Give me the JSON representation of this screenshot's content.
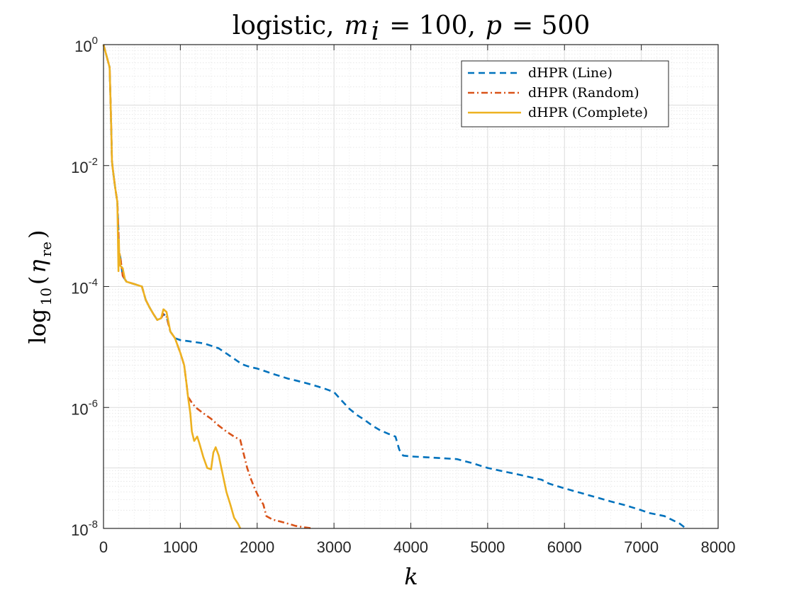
{
  "chart_data": {
    "type": "line",
    "title": "logistic, m_i = 100, p = 500",
    "title_parts": {
      "prefix": "logistic,",
      "var1": "m",
      "var1_sub": "i",
      "eq1": "= 100,",
      "var2": "p",
      "eq2": "= 500"
    },
    "xlabel": "k",
    "ylabel": "log10(η_re)",
    "ylabel_parts": {
      "func": "log",
      "func_sub": "10",
      "open": "(",
      "sym": "η",
      "sym_sub": "re",
      "close": ")"
    },
    "xlim": [
      0,
      8000
    ],
    "ylim": [
      1e-08,
      1
    ],
    "yscale": "log",
    "grid": true,
    "minor_grid": true,
    "legend_position": "top-right",
    "x_ticks": [
      {
        "value": 0,
        "label": "0"
      },
      {
        "value": 1000,
        "label": "1000"
      },
      {
        "value": 2000,
        "label": "2000"
      },
      {
        "value": 3000,
        "label": "3000"
      },
      {
        "value": 4000,
        "label": "4000"
      },
      {
        "value": 5000,
        "label": "5000"
      },
      {
        "value": 6000,
        "label": "6000"
      },
      {
        "value": 7000,
        "label": "7000"
      },
      {
        "value": 8000,
        "label": "8000"
      }
    ],
    "y_ticks": [
      {
        "value": 1,
        "base": "10",
        "exp": "0"
      },
      {
        "value": 0.01,
        "base": "10",
        "exp": "-2"
      },
      {
        "value": 0.0001,
        "base": "10",
        "exp": "-4"
      },
      {
        "value": 1e-06,
        "base": "10",
        "exp": "-6"
      },
      {
        "value": 1e-08,
        "base": "10",
        "exp": "-8"
      }
    ],
    "series": [
      {
        "name": "dHPR (Line)",
        "color": "#0072BD",
        "style": "dashed",
        "x": [
          0,
          80,
          100,
          110,
          120,
          150,
          180,
          195,
          200,
          220,
          250,
          300,
          400,
          500,
          550,
          600,
          650,
          700,
          750,
          780,
          820,
          870,
          930,
          1000,
          1100,
          1200,
          1300,
          1400,
          1500,
          1600,
          1700,
          1800,
          1900,
          2000,
          2100,
          2200,
          2300,
          2400,
          2500,
          2600,
          2700,
          2800,
          2900,
          3000,
          3100,
          3200,
          3300,
          3400,
          3500,
          3600,
          3700,
          3800,
          3850,
          3900,
          4000,
          4200,
          4400,
          4600,
          4800,
          5000,
          5200,
          5400,
          5600,
          5700,
          5800,
          6000,
          6200,
          6400,
          6600,
          6800,
          7000,
          7100,
          7200,
          7300,
          7500,
          7580
        ],
        "y": [
          1,
          0.42,
          0.045,
          0.012,
          0.009,
          0.0045,
          0.0025,
          0.0008,
          0.0004,
          0.0003,
          0.00015,
          0.00012,
          0.00011,
          0.0001,
          6e-05,
          4.5e-05,
          3.5e-05,
          2.8e-05,
          3e-05,
          3.5e-05,
          3.2e-05,
          1.8e-05,
          1.4e-05,
          1.3e-05,
          1.25e-05,
          1.2e-05,
          1.15e-05,
          1.05e-05,
          9.5e-06,
          7.8e-06,
          6.4e-06,
          5.2e-06,
          4.7e-06,
          4.4e-06,
          4e-06,
          3.6e-06,
          3.3e-06,
          3e-06,
          2.8e-06,
          2.6e-06,
          2.4e-06,
          2.2e-06,
          2e-06,
          1.8e-06,
          1.3e-06,
          9.5e-07,
          7.5e-07,
          6.2e-07,
          5e-07,
          4.2e-07,
          3.7e-07,
          3.3e-07,
          2e-07,
          1.6e-07,
          1.55e-07,
          1.5e-07,
          1.45e-07,
          1.4e-07,
          1.2e-07,
          1e-07,
          8.8e-08,
          7.8e-08,
          6.8e-08,
          6.4e-08,
          5.5e-08,
          4.6e-08,
          3.9e-08,
          3.3e-08,
          2.8e-08,
          2.4e-08,
          2e-08,
          1.8e-08,
          1.7e-08,
          1.6e-08,
          1.2e-08,
          1e-08
        ]
      },
      {
        "name": "dHPR (Random)",
        "color": "#D95319",
        "style": "dashdot",
        "x": [
          0,
          80,
          100,
          110,
          120,
          150,
          180,
          195,
          200,
          220,
          250,
          300,
          400,
          500,
          550,
          600,
          650,
          700,
          750,
          780,
          820,
          870,
          930,
          1000,
          1050,
          1080,
          1100,
          1150,
          1200,
          1300,
          1400,
          1500,
          1600,
          1700,
          1780,
          1820,
          1870,
          1920,
          1970,
          2020,
          2080,
          2120,
          2200,
          2300,
          2400,
          2500,
          2600,
          2700,
          2730
        ],
        "y": [
          1,
          0.42,
          0.045,
          0.012,
          0.009,
          0.0045,
          0.0025,
          0.0008,
          0.0004,
          0.0003,
          0.00015,
          0.00012,
          0.00011,
          0.0001,
          6e-05,
          4.5e-05,
          3.5e-05,
          2.8e-05,
          3e-05,
          3.5e-05,
          3.2e-05,
          1.8e-05,
          1.4e-05,
          8e-06,
          5e-06,
          2.5e-06,
          1.5e-06,
          1.2e-06,
          1e-06,
          8e-07,
          6.5e-07,
          5e-07,
          4e-07,
          3.3e-07,
          2.9e-07,
          1.8e-07,
          1e-07,
          6.5e-08,
          4.5e-08,
          3.3e-08,
          2.5e-08,
          1.6e-08,
          1.4e-08,
          1.3e-08,
          1.2e-08,
          1.1e-08,
          1.05e-08,
          1.01e-08,
          1e-08
        ]
      },
      {
        "name": "dHPR (Complete)",
        "color": "#EDB120",
        "style": "solid",
        "x": [
          0,
          80,
          100,
          110,
          120,
          150,
          180,
          195,
          200,
          205,
          210,
          220,
          250,
          280,
          300,
          400,
          500,
          550,
          600,
          650,
          700,
          750,
          780,
          820,
          870,
          930,
          1000,
          1050,
          1080,
          1100,
          1130,
          1150,
          1180,
          1220,
          1250,
          1300,
          1350,
          1400,
          1430,
          1460,
          1500,
          1550,
          1600,
          1650,
          1700,
          1750,
          1780
        ],
        "y": [
          1,
          0.42,
          0.045,
          0.012,
          0.009,
          0.0045,
          0.0025,
          0.00018,
          0.0006,
          0.0003,
          0.00035,
          0.00022,
          0.0002,
          0.00013,
          0.00012,
          0.00011,
          0.0001,
          6e-05,
          4.5e-05,
          3.5e-05,
          2.8e-05,
          3e-05,
          4.2e-05,
          3.8e-05,
          1.8e-05,
          1.4e-05,
          8e-06,
          5e-06,
          2.5e-06,
          1.5e-06,
          8e-07,
          4e-07,
          2.8e-07,
          3.3e-07,
          2.5e-07,
          1.5e-07,
          1e-07,
          9.5e-08,
          1.8e-07,
          2.2e-07,
          1.6e-07,
          8e-08,
          4e-08,
          2.5e-08,
          1.5e-08,
          1.2e-08,
          1e-08
        ]
      }
    ]
  }
}
